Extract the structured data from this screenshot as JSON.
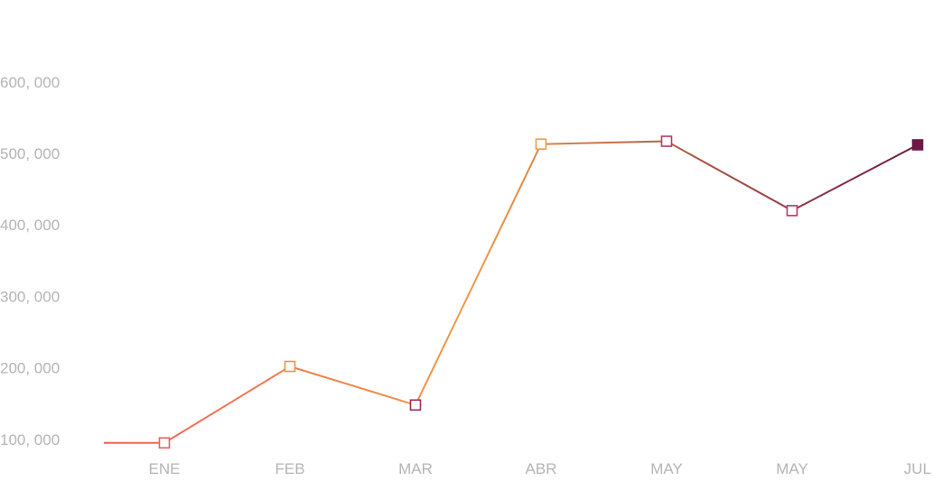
{
  "chart_data": {
    "type": "line",
    "categories": [
      "ENE",
      "FEB",
      "MAR",
      "ABR",
      "MAY",
      "MAY",
      "JUL"
    ],
    "series": [
      {
        "values": [
          95000,
          202000,
          148000,
          513000,
          517000,
          420000,
          512000
        ]
      }
    ],
    "y_ticks": [
      {
        "value": 100000,
        "label": "100, 000"
      },
      {
        "value": 200000,
        "label": "200, 000"
      },
      {
        "value": 300000,
        "label": "300, 000"
      },
      {
        "value": 400000,
        "label": "400, 000"
      },
      {
        "value": 500000,
        "label": "500, 000"
      },
      {
        "value": 600000,
        "label": "600, 000"
      }
    ],
    "ylim": [
      0,
      600000
    ],
    "grid": false,
    "legend": "none",
    "colors": {
      "gradient_start": "#f0605a",
      "gradient_mid": "#f09a45",
      "gradient_end": "#6e1747",
      "tick_label": "#b4b4b4",
      "marker_fill": "#ffffff"
    },
    "point_colors": [
      "#ee5f5b",
      "#f19144",
      "#a12a5e",
      "#f39a45",
      "#b93a63",
      "#b8365f",
      "#6e1747"
    ],
    "point_filled": [
      false,
      false,
      false,
      false,
      false,
      false,
      true
    ]
  }
}
